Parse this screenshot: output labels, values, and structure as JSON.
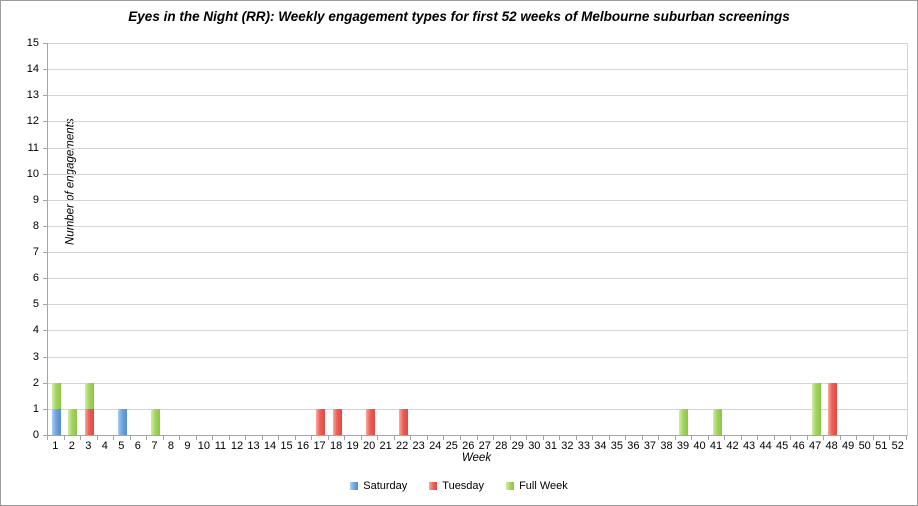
{
  "chart_data": {
    "type": "bar",
    "stacked": true,
    "title": "Eyes in the Night (RR): Weekly engagement types for first 52 weeks of Melbourne suburban screenings",
    "xlabel": "Week",
    "ylabel": "Number of engagements",
    "ylim": [
      0,
      15
    ],
    "ytick_step": 1,
    "grid": true,
    "legend_position": "bottom",
    "categories": [
      1,
      2,
      3,
      4,
      5,
      6,
      7,
      8,
      9,
      10,
      11,
      12,
      13,
      14,
      15,
      16,
      17,
      18,
      19,
      20,
      21,
      22,
      23,
      24,
      25,
      26,
      27,
      28,
      29,
      30,
      31,
      32,
      33,
      34,
      35,
      36,
      37,
      38,
      39,
      40,
      41,
      42,
      43,
      44,
      45,
      46,
      47,
      48,
      49,
      50,
      51,
      52
    ],
    "series": [
      {
        "name": "Saturday",
        "color": "#6fa4e0",
        "color_light": "#abcdf2",
        "color_dark": "#548ccb",
        "values": [
          1,
          0,
          0,
          0,
          1,
          0,
          0,
          0,
          0,
          0,
          0,
          0,
          0,
          0,
          0,
          0,
          0,
          0,
          0,
          0,
          0,
          0,
          0,
          0,
          0,
          0,
          0,
          0,
          0,
          0,
          0,
          0,
          0,
          0,
          0,
          0,
          0,
          0,
          0,
          0,
          0,
          0,
          0,
          0,
          0,
          0,
          0,
          0,
          0,
          0,
          0,
          0
        ]
      },
      {
        "name": "Tuesday",
        "color": "#ee5f57",
        "color_light": "#f8a9a2",
        "color_dark": "#dd4a43",
        "values": [
          0,
          0,
          1,
          0,
          0,
          0,
          0,
          0,
          0,
          0,
          0,
          0,
          0,
          0,
          0,
          0,
          1,
          1,
          0,
          1,
          0,
          1,
          0,
          0,
          0,
          0,
          0,
          0,
          0,
          0,
          0,
          0,
          0,
          0,
          0,
          0,
          0,
          0,
          0,
          0,
          0,
          0,
          0,
          0,
          0,
          0,
          0,
          2,
          0,
          0,
          0,
          0
        ]
      },
      {
        "name": "Full Week",
        "color": "#a2d55e",
        "color_light": "#d3ecab",
        "color_dark": "#8cc447",
        "values": [
          1,
          1,
          1,
          0,
          0,
          0,
          1,
          0,
          0,
          0,
          0,
          0,
          0,
          0,
          0,
          0,
          0,
          0,
          0,
          0,
          0,
          0,
          0,
          0,
          0,
          0,
          0,
          0,
          0,
          0,
          0,
          0,
          0,
          0,
          0,
          0,
          0,
          0,
          1,
          0,
          1,
          0,
          0,
          0,
          0,
          0,
          2,
          0,
          0,
          0,
          0,
          0
        ]
      }
    ]
  }
}
